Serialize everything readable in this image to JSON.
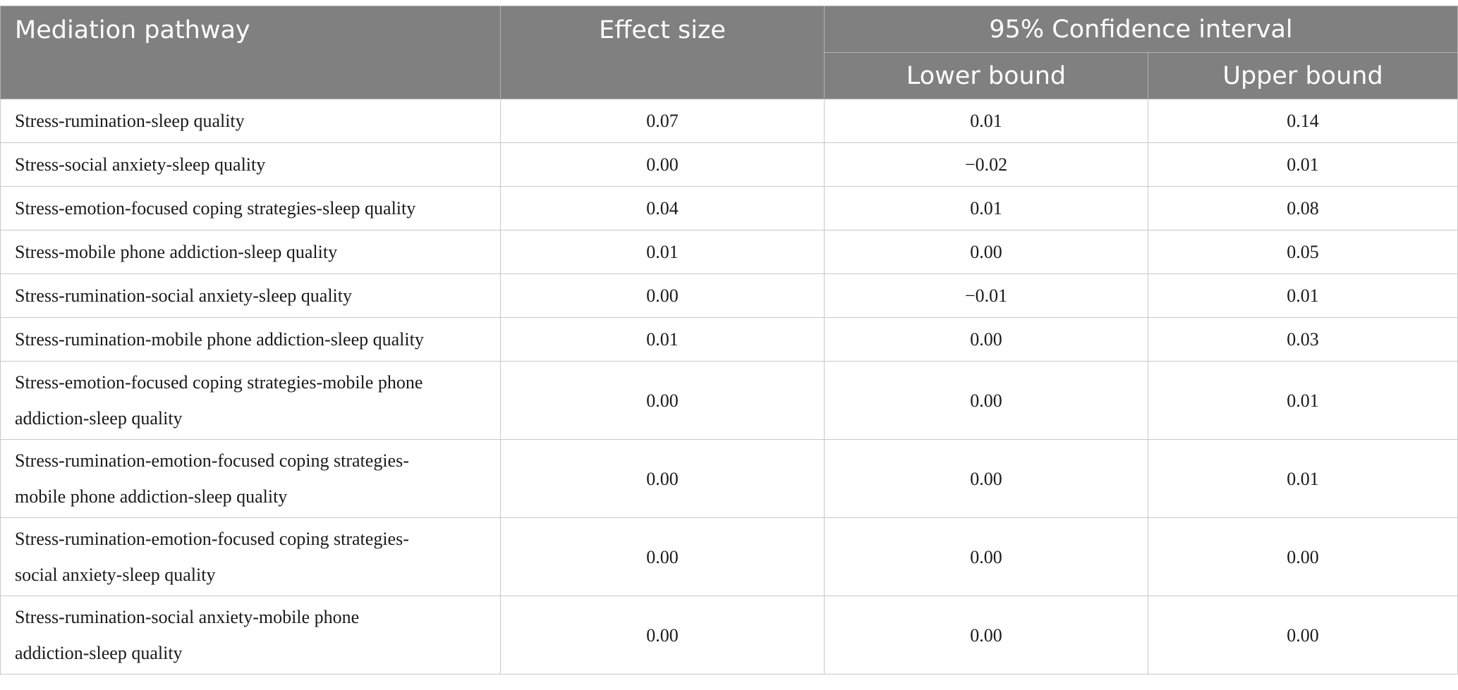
{
  "table": {
    "headers": {
      "pathway": "Mediation pathway",
      "effect": "Effect size",
      "ci": "95% Confidence interval",
      "lower": "Lower bound",
      "upper": "Upper bound"
    },
    "rows": [
      {
        "pathway": "Stress-rumination-sleep quality",
        "effect": "0.07",
        "lower": "0.01",
        "upper": "0.14"
      },
      {
        "pathway": "Stress-social anxiety-sleep quality",
        "effect": "0.00",
        "lower": "−0.02",
        "upper": "0.01"
      },
      {
        "pathway": "Stress-emotion-focused coping strategies-sleep quality",
        "effect": "0.04",
        "lower": "0.01",
        "upper": "0.08"
      },
      {
        "pathway": "Stress-mobile phone addiction-sleep quality",
        "effect": "0.01",
        "lower": "0.00",
        "upper": "0.05"
      },
      {
        "pathway": "Stress-rumination-social anxiety-sleep quality",
        "effect": "0.00",
        "lower": "−0.01",
        "upper": "0.01"
      },
      {
        "pathway": "Stress-rumination-mobile phone addiction-sleep quality",
        "effect": "0.01",
        "lower": "0.00",
        "upper": "0.03"
      },
      {
        "pathway_line1": "Stress-emotion-focused coping strategies-mobile phone",
        "pathway_line2": "addiction-sleep quality",
        "effect": "0.00",
        "lower": "0.00",
        "upper": "0.01"
      },
      {
        "pathway_line1": "Stress-rumination-emotion-focused coping strategies-",
        "pathway_line2": "mobile phone addiction-sleep quality",
        "effect": "0.00",
        "lower": "0.00",
        "upper": "0.01"
      },
      {
        "pathway_line1": "Stress-rumination-emotion-focused coping strategies-",
        "pathway_line2": "social anxiety-sleep quality",
        "effect": "0.00",
        "lower": "0.00",
        "upper": "0.00"
      },
      {
        "pathway_line1": "Stress-rumination-social anxiety-mobile phone",
        "pathway_line2": "addiction-sleep quality",
        "effect": "0.00",
        "lower": "0.00",
        "upper": "0.00"
      }
    ]
  }
}
